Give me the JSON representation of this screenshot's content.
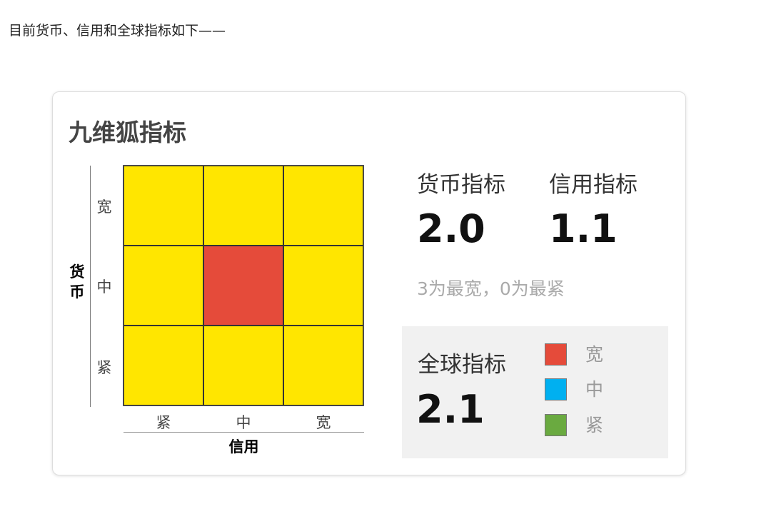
{
  "intro": "目前货币、信用和全球指标如下——",
  "card": {
    "title": "九维狐指标",
    "matrix": {
      "y_axis_label": "货币",
      "x_axis_label": "信用",
      "y_ticks": [
        "宽",
        "中",
        "紧"
      ],
      "x_ticks": [
        "紧",
        "中",
        "宽"
      ],
      "highlight": {
        "money": "中",
        "credit": "中"
      },
      "cell_color": "#FFE600",
      "highlight_color": "#E54B3A"
    },
    "money": {
      "label": "货币指标",
      "value": "2.0"
    },
    "credit": {
      "label": "信用指标",
      "value": "1.1"
    },
    "note": "3为最宽，0为最紧",
    "global": {
      "label": "全球指标",
      "value": "2.1",
      "legend": [
        {
          "label": "宽",
          "color": "#E54B3A"
        },
        {
          "label": "中",
          "color": "#00B0F0"
        },
        {
          "label": "紧",
          "color": "#6AAA40"
        }
      ]
    }
  }
}
